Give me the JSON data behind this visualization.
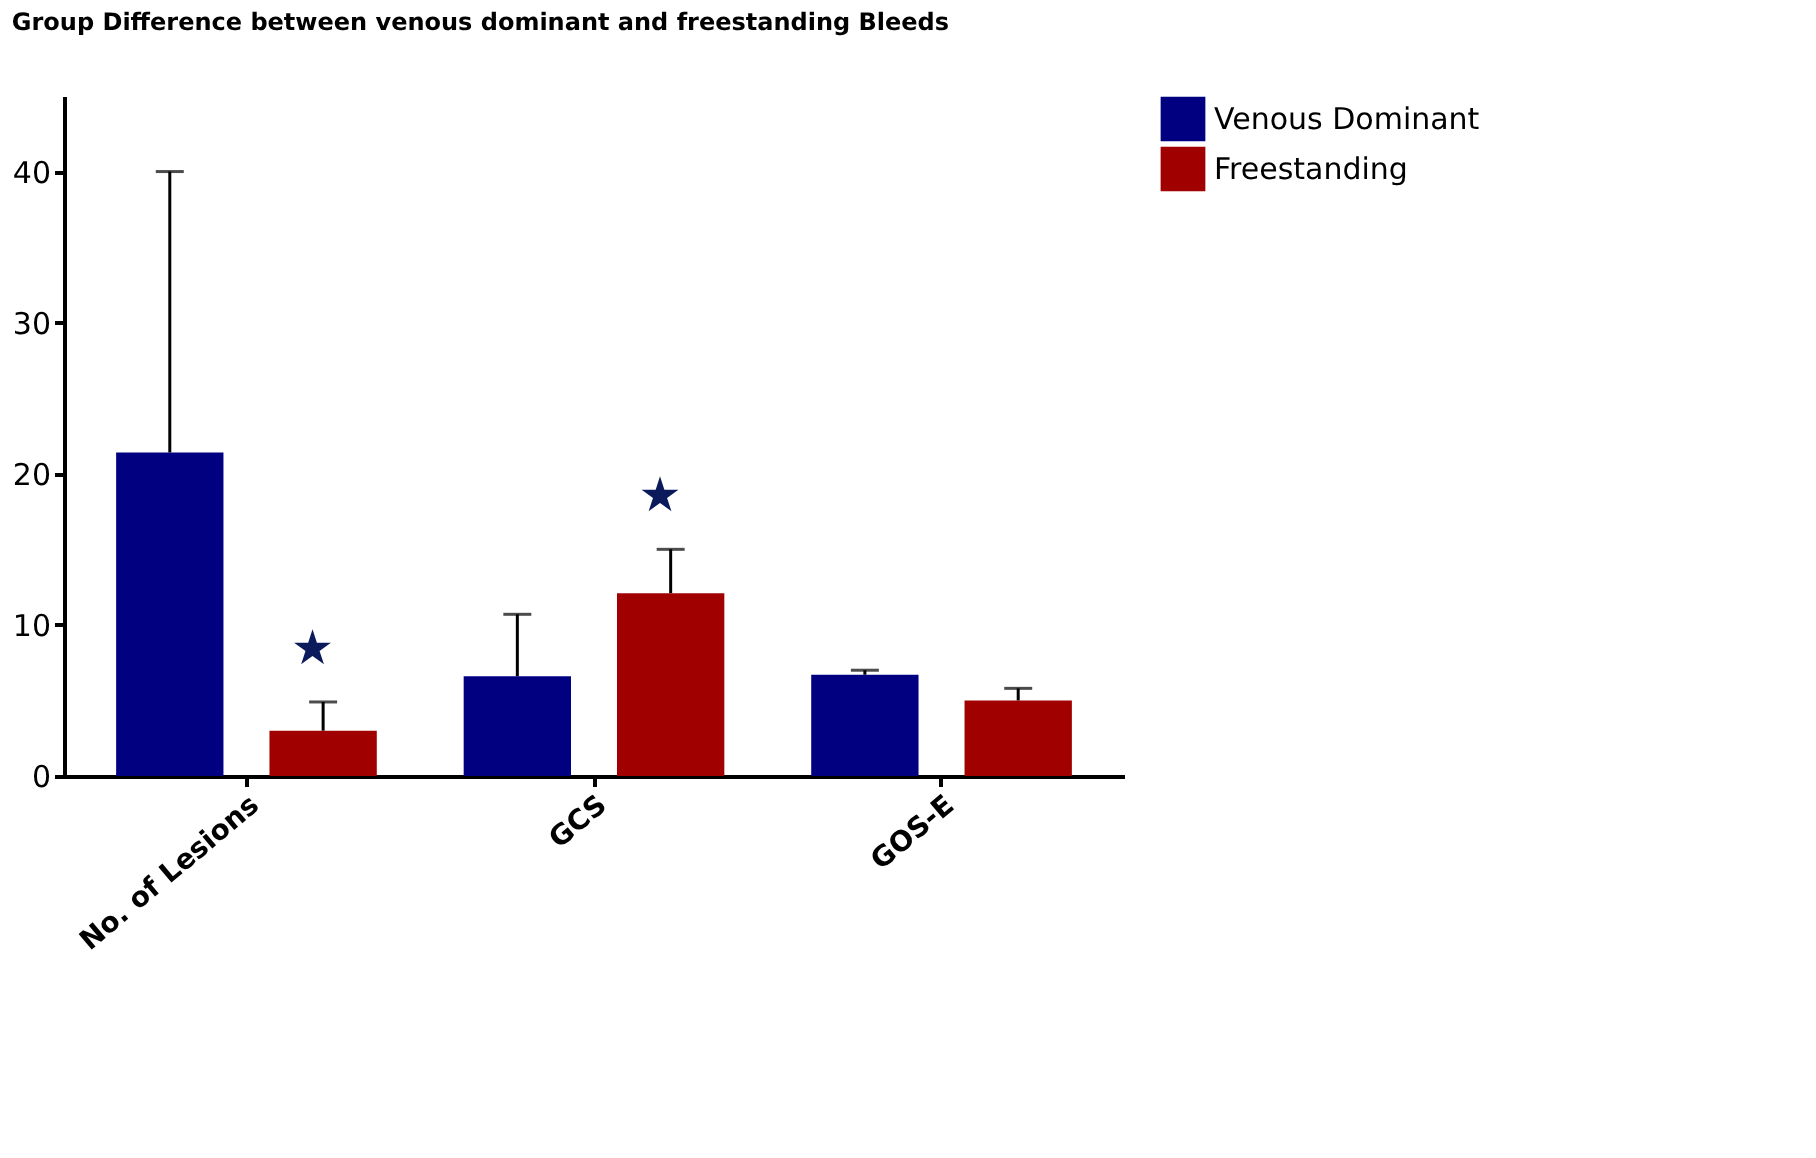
{
  "chart_data": {
    "type": "bar",
    "title": "Group Difference between venous dominant and freestanding Bleeds",
    "categories": [
      "No. of Lesions",
      "GCS",
      "GOS-E"
    ],
    "series": [
      {
        "name": "Venous Dominant",
        "color": "#000080",
        "values": [
          21.4,
          6.6,
          6.7
        ],
        "errors": [
          [
            21.4,
            40.0
          ],
          [
            6.6,
            10.7
          ],
          [
            6.7,
            7.0
          ]
        ]
      },
      {
        "name": "Freestanding",
        "color": "#a00000",
        "values": [
          3.0,
          12.1,
          5.0
        ],
        "errors": [
          [
            3.0,
            4.9
          ],
          [
            12.1,
            15.0
          ],
          [
            5.0,
            5.8
          ]
        ]
      }
    ],
    "ylim": [
      0,
      45
    ],
    "yticks": [
      0,
      10,
      20,
      30,
      40
    ],
    "grid": false,
    "legend": "top right",
    "annotations": [
      "★",
      "★"
    ]
  }
}
